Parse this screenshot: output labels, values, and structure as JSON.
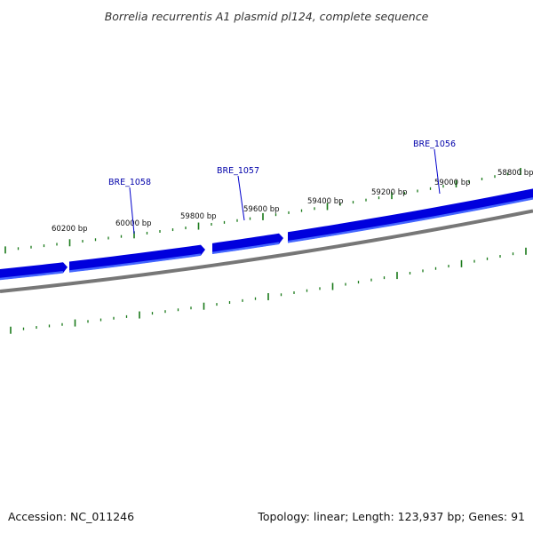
{
  "title": "Borrelia recurrentis A1 plasmid pl124, complete sequence",
  "footer": {
    "accession": "Accession: NC_011246",
    "summary": "Topology: linear; Length: 123,937 bp; Genes: 91"
  },
  "colors": {
    "gene": "#0000dd",
    "gene_shade": "#4466ff",
    "backbone": "#777777",
    "tick": "#1a7a1a",
    "label_line": "#0000cc",
    "label_text": "#0000aa"
  },
  "bp_labels": [
    {
      "bp": 60200,
      "text": "60200 bp"
    },
    {
      "bp": 60000,
      "text": "60000 bp"
    },
    {
      "bp": 59800,
      "text": "59800 bp"
    },
    {
      "bp": 59600,
      "text": "59600 bp"
    },
    {
      "bp": 59400,
      "text": "59400 bp"
    },
    {
      "bp": 59200,
      "text": "59200 bp"
    },
    {
      "bp": 59000,
      "text": "59000 bp"
    },
    {
      "bp": 58800,
      "text": "58800 bp"
    }
  ],
  "genes": [
    {
      "name": "BRE_1058"
    },
    {
      "name": "BRE_1057"
    },
    {
      "name": "BRE_1056"
    }
  ]
}
